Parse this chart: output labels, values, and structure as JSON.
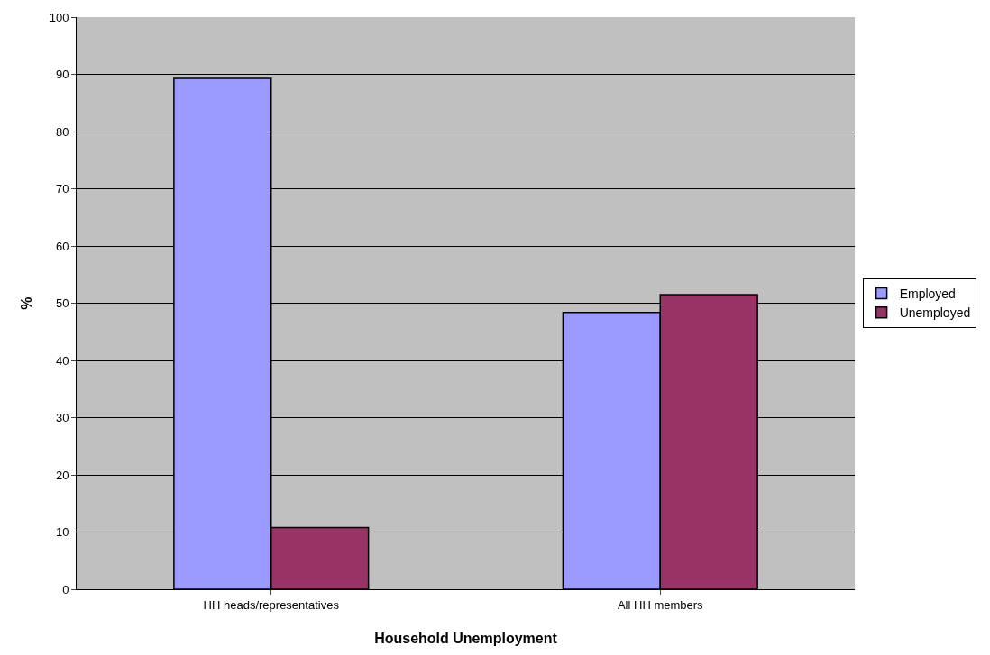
{
  "chart_data": {
    "type": "bar",
    "xlabel": "Household Unemployment",
    "ylabel": "%",
    "categories": [
      "HH heads/representatives",
      "All HH members"
    ],
    "series": [
      {
        "name": "Employed",
        "color": "#9999ff",
        "values": [
          89.3,
          48.4
        ]
      },
      {
        "name": "Unemployed",
        "color": "#993366",
        "values": [
          10.8,
          51.5
        ]
      }
    ],
    "ylim": [
      0,
      100
    ],
    "yticks": [
      0,
      10,
      20,
      30,
      40,
      50,
      60,
      70,
      80,
      90,
      100
    ],
    "grid": "y",
    "legend": "right"
  }
}
